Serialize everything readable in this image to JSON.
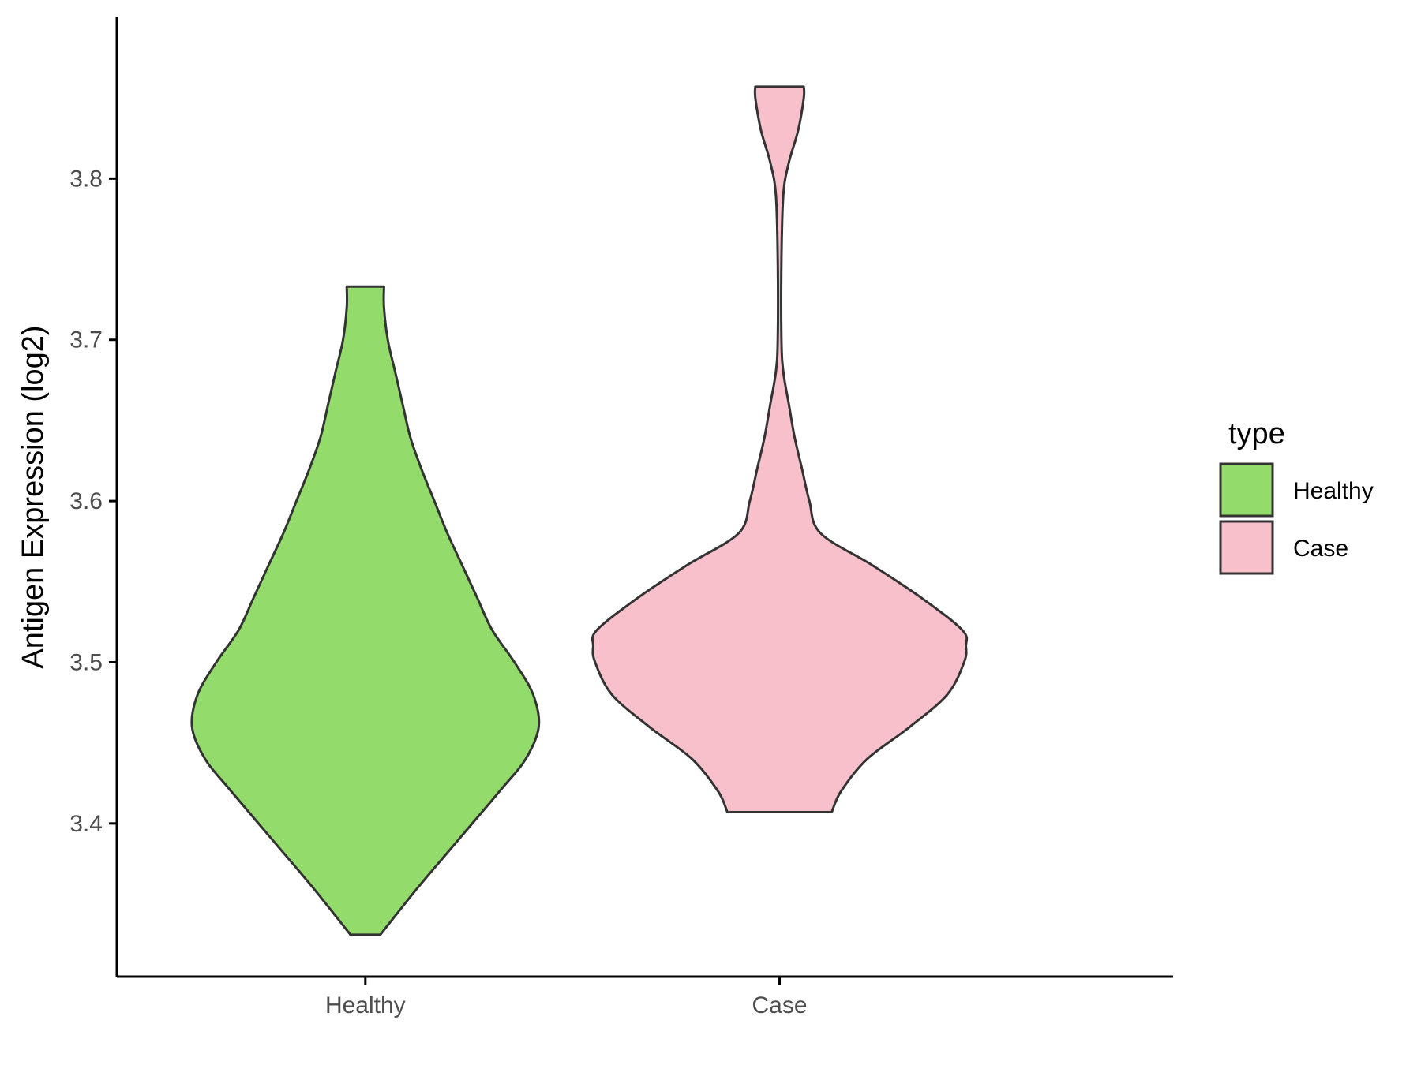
{
  "chart_data": {
    "type": "violin",
    "title": "",
    "xlabel": "",
    "ylabel": "Antigen Expression (log2)",
    "ylim": [
      3.305,
      3.9
    ],
    "yticks": [
      3.4,
      3.5,
      3.6,
      3.7,
      3.8
    ],
    "grid": false,
    "legend": {
      "title": "type",
      "position": "right",
      "entries": [
        {
          "label": "Healthy",
          "color": "#93dc6b"
        },
        {
          "label": "Case",
          "color": "#f7c0cb"
        }
      ]
    },
    "categories": [
      "Healthy",
      "Case"
    ],
    "series": [
      {
        "name": "Healthy",
        "color": "#93dc6b",
        "min": 3.331,
        "max": 3.733,
        "density": [
          [
            3.331,
            0.08
          ],
          [
            3.36,
            0.28
          ],
          [
            3.39,
            0.5
          ],
          [
            3.42,
            0.72
          ],
          [
            3.44,
            0.86
          ],
          [
            3.46,
            0.93
          ],
          [
            3.48,
            0.9
          ],
          [
            3.5,
            0.8
          ],
          [
            3.52,
            0.68
          ],
          [
            3.54,
            0.6
          ],
          [
            3.56,
            0.52
          ],
          [
            3.58,
            0.44
          ],
          [
            3.6,
            0.37
          ],
          [
            3.62,
            0.3
          ],
          [
            3.64,
            0.24
          ],
          [
            3.66,
            0.2
          ],
          [
            3.68,
            0.16
          ],
          [
            3.7,
            0.12
          ],
          [
            3.72,
            0.1
          ],
          [
            3.733,
            0.1
          ]
        ]
      },
      {
        "name": "Case",
        "color": "#f7c0cb",
        "min": 3.407,
        "max": 3.857,
        "density": [
          [
            3.407,
            0.28
          ],
          [
            3.42,
            0.33
          ],
          [
            3.44,
            0.47
          ],
          [
            3.46,
            0.7
          ],
          [
            3.48,
            0.9
          ],
          [
            3.5,
            0.99
          ],
          [
            3.51,
            1.0
          ],
          [
            3.52,
            0.98
          ],
          [
            3.54,
            0.76
          ],
          [
            3.56,
            0.5
          ],
          [
            3.58,
            0.22
          ],
          [
            3.6,
            0.16
          ],
          [
            3.62,
            0.12
          ],
          [
            3.64,
            0.08
          ],
          [
            3.66,
            0.05
          ],
          [
            3.68,
            0.02
          ],
          [
            3.7,
            0.01
          ],
          [
            3.75,
            0.01
          ],
          [
            3.79,
            0.02
          ],
          [
            3.81,
            0.05
          ],
          [
            3.83,
            0.1
          ],
          [
            3.85,
            0.13
          ],
          [
            3.857,
            0.13
          ]
        ]
      }
    ]
  }
}
